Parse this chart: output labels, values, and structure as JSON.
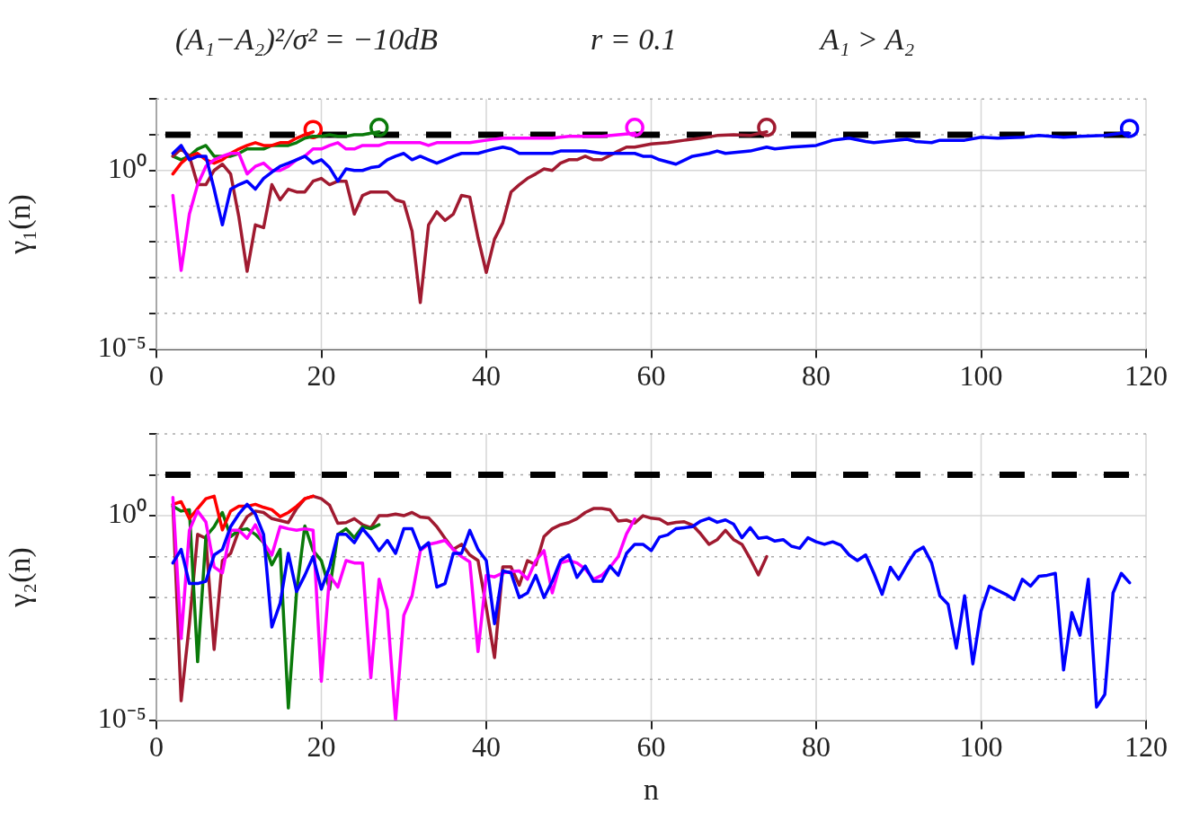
{
  "chart_data": [
    {
      "type": "line",
      "annotations": [
        "(A₁−A₂)²/σ² = −10dB",
        "r = 0.1",
        "A₁ > A₂"
      ],
      "ylabel": "γ₁(n)",
      "log": true,
      "grid": true,
      "xlim": [
        0,
        120
      ],
      "xticks": [
        0,
        20,
        40,
        60,
        80,
        100,
        120
      ],
      "ylim": [
        1e-05,
        100
      ],
      "yticks": [
        {
          "value": 1e-05,
          "label": "10⁻⁵"
        },
        {
          "value": 0.0001,
          "label": null
        },
        {
          "value": 0.001,
          "label": null
        },
        {
          "value": 0.01,
          "label": null
        },
        {
          "value": 0.1,
          "label": null
        },
        {
          "value": 1,
          "label": "10⁰"
        },
        {
          "value": 10,
          "label": null
        },
        {
          "value": 100,
          "label": null
        }
      ],
      "ref_lines": [
        {
          "axis": "y",
          "value": 10,
          "color": "#000000",
          "line_style": "dashed"
        }
      ],
      "series": [
        {
          "type": "line",
          "color": "#0000ff",
          "x": [
            2,
            3,
            4,
            5,
            6,
            7,
            8,
            9,
            10,
            11,
            12,
            13,
            14,
            15,
            16,
            17,
            18,
            19,
            20,
            21,
            22,
            23,
            24,
            25,
            26,
            27,
            28,
            29,
            30,
            31,
            32,
            33,
            34,
            35,
            36,
            37,
            38,
            39,
            40,
            41,
            42,
            43,
            44,
            45,
            46,
            47,
            48,
            49,
            50,
            52,
            54,
            56,
            58,
            59,
            60,
            61,
            63,
            65,
            67,
            68,
            69,
            72,
            74,
            75,
            77,
            80,
            82,
            84,
            86,
            87,
            91,
            92,
            94,
            95,
            98,
            100,
            102,
            105,
            107,
            110,
            112,
            115,
            117,
            118
          ],
          "values": [
            3,
            5,
            2,
            2.5,
            2.5,
            0.3,
            0.03,
            0.3,
            0.4,
            0.5,
            0.3,
            0.6,
            0.9,
            1.3,
            1.6,
            2,
            2.5,
            1.6,
            2,
            1.2,
            0.5,
            1.1,
            1,
            1,
            1.2,
            1.3,
            2,
            2.5,
            3,
            2,
            2.5,
            2,
            1.6,
            2,
            2.5,
            3,
            3,
            3,
            3.5,
            4,
            4.5,
            4,
            3,
            3,
            3,
            3,
            3,
            3.5,
            3.5,
            3.5,
            3,
            3,
            3,
            2.5,
            2.5,
            2,
            1.5,
            2.5,
            3,
            3.5,
            3,
            3.5,
            4.5,
            4,
            4.5,
            5,
            7,
            8,
            6.5,
            6,
            7.5,
            6.5,
            6,
            7,
            7,
            8.5,
            8,
            8.5,
            9.5,
            8.5,
            9,
            9.5,
            11,
            11
          ]
        },
        {
          "type": "line",
          "color": "#ff00ff",
          "x": [
            2,
            3,
            4,
            5,
            6,
            7,
            8,
            9,
            10,
            11,
            12,
            13,
            14,
            15,
            16,
            17,
            18,
            19,
            20,
            21,
            22,
            23,
            24,
            25,
            26,
            27,
            28,
            29,
            30,
            31,
            32,
            33,
            34,
            36,
            38,
            40,
            42,
            44,
            46,
            48,
            50,
            52,
            54,
            56,
            58
          ],
          "values": [
            0.2,
            0.0016,
            0.06,
            0.4,
            1.3,
            2,
            2.5,
            3,
            3,
            0.8,
            1.3,
            1.6,
            1,
            1,
            1.3,
            2,
            2.5,
            4,
            4,
            5,
            6,
            4,
            4,
            5,
            5,
            5,
            6,
            6,
            6,
            6,
            6,
            5,
            6,
            6,
            6,
            7,
            8,
            8,
            8,
            8,
            9,
            9,
            9,
            10,
            11
          ]
        },
        {
          "type": "line",
          "color": "#a01a30",
          "x": [
            2,
            3,
            4,
            5,
            6,
            7,
            8,
            9,
            10,
            11,
            12,
            13,
            14,
            15,
            16,
            17,
            18,
            19,
            20,
            21,
            22,
            23,
            24,
            25,
            26,
            27,
            28,
            29,
            30,
            31,
            32,
            33,
            34,
            35,
            36,
            37,
            38,
            39,
            40,
            41,
            42,
            43,
            44,
            45,
            46,
            47,
            48,
            49,
            50,
            51,
            52,
            53,
            54,
            56,
            57,
            58,
            60,
            62,
            64,
            66,
            68,
            70,
            72,
            74
          ],
          "values": [
            2.5,
            4,
            2.5,
            0.4,
            0.4,
            1,
            1.5,
            0.8,
            0.05,
            0.0015,
            0.03,
            0.025,
            0.4,
            0.15,
            0.3,
            0.25,
            0.25,
            0.5,
            0.6,
            0.4,
            0.5,
            0.5,
            0.06,
            0.2,
            0.25,
            0.25,
            0.25,
            0.15,
            0.13,
            0.02,
            0.0002,
            0.03,
            0.07,
            0.04,
            0.06,
            0.2,
            0.18,
            0.013,
            0.0014,
            0.012,
            0.034,
            0.25,
            0.4,
            0.6,
            0.8,
            1.1,
            1,
            1.6,
            2,
            2,
            2.5,
            2,
            2,
            3.5,
            4.5,
            4.5,
            5.5,
            6,
            7,
            8,
            9.5,
            10,
            9.5,
            12
          ]
        },
        {
          "type": "line",
          "color": "#ff0000",
          "x": [
            2,
            3,
            4,
            5,
            6,
            7,
            8,
            9,
            10,
            11,
            12,
            13,
            14,
            15,
            16,
            17,
            18,
            19
          ],
          "values": [
            0.8,
            1.6,
            2.5,
            3,
            2,
            1.6,
            2,
            3,
            4,
            5,
            6,
            5,
            5,
            6,
            6,
            8,
            10,
            12
          ]
        },
        {
          "type": "line",
          "color": "#0a7a0a",
          "x": [
            2,
            3,
            4,
            5,
            6,
            7,
            8,
            9,
            10,
            11,
            12,
            13,
            14,
            15,
            16,
            17,
            18,
            19,
            20,
            21,
            22,
            23,
            24,
            25,
            26,
            27
          ],
          "values": [
            2.5,
            2,
            2.5,
            4,
            5,
            2.5,
            2.5,
            2.5,
            3,
            4,
            4,
            4,
            5,
            5,
            5,
            6,
            8,
            9,
            9,
            10,
            9,
            9,
            10,
            10,
            11,
            12
          ]
        },
        {
          "type": "scatter",
          "marker": "circle",
          "color": "#ff0000",
          "x": [
            19
          ],
          "values": [
            14
          ]
        },
        {
          "type": "scatter",
          "marker": "circle",
          "color": "#0a7a0a",
          "x": [
            27
          ],
          "values": [
            16
          ]
        },
        {
          "type": "scatter",
          "marker": "circle",
          "color": "#ff00ff",
          "x": [
            58
          ],
          "values": [
            16
          ]
        },
        {
          "type": "scatter",
          "marker": "circle",
          "color": "#a01a30",
          "x": [
            74
          ],
          "values": [
            16
          ]
        },
        {
          "type": "scatter",
          "marker": "circle",
          "color": "#0000ff",
          "x": [
            118
          ],
          "values": [
            15
          ]
        }
      ]
    },
    {
      "type": "line",
      "xlabel": "n",
      "ylabel": "γ₂(n)",
      "log": true,
      "grid": true,
      "xlim": [
        0,
        120
      ],
      "xticks": [
        0,
        20,
        40,
        60,
        80,
        100,
        120
      ],
      "ylim": [
        1e-05,
        100
      ],
      "yticks": [
        {
          "value": 1e-05,
          "label": "10⁻⁵"
        },
        {
          "value": 0.0001,
          "label": null
        },
        {
          "value": 0.001,
          "label": null
        },
        {
          "value": 0.01,
          "label": null
        },
        {
          "value": 0.1,
          "label": null
        },
        {
          "value": 1,
          "label": "10⁰"
        },
        {
          "value": 10,
          "label": null
        },
        {
          "value": 100,
          "label": null
        }
      ],
      "ref_lines": [
        {
          "axis": "y",
          "value": 10,
          "color": "#000000",
          "line_style": "dashed"
        }
      ],
      "series": [
        {
          "type": "line",
          "color": "#0000ff",
          "x": [
            2,
            3,
            4,
            5,
            6,
            7,
            8,
            9,
            10,
            11,
            12,
            13,
            14,
            15,
            16,
            17,
            18,
            19,
            20,
            21,
            22,
            23,
            24,
            25,
            26,
            27,
            28,
            29,
            30,
            31,
            32,
            33,
            34,
            35,
            36,
            37,
            38,
            39,
            40,
            41,
            42,
            43,
            44,
            45,
            46,
            47,
            48,
            49,
            50,
            51,
            52,
            53,
            54,
            55,
            56,
            57,
            58,
            59,
            60,
            61,
            62,
            63,
            64,
            65,
            66,
            67,
            68,
            69,
            70,
            71,
            72,
            73,
            74,
            75,
            76,
            77,
            78,
            79,
            80,
            81,
            82,
            83,
            84,
            85,
            86,
            87,
            88,
            89,
            90,
            91,
            92,
            93,
            94,
            95,
            96,
            97,
            98,
            99,
            100,
            101,
            102,
            103,
            104,
            105,
            106,
            107,
            108,
            109,
            110,
            111,
            112,
            113,
            114,
            115,
            116,
            117,
            118
          ],
          "values": [
            0.07,
            0.15,
            0.022,
            0.022,
            0.025,
            0.11,
            0.15,
            0.54,
            1.1,
            1.9,
            1.1,
            0.35,
            0.0019,
            0.0072,
            0.12,
            0.014,
            0.035,
            0.1,
            0.016,
            0.056,
            0.35,
            0.35,
            0.22,
            0.48,
            0.28,
            0.14,
            0.25,
            0.12,
            0.48,
            0.48,
            0.15,
            0.22,
            0.018,
            0.022,
            0.12,
            0.12,
            0.44,
            0.15,
            0.08,
            0.0023,
            0.045,
            0.04,
            0.01,
            0.013,
            0.035,
            0.01,
            0.025,
            0.08,
            0.11,
            0.031,
            0.059,
            0.025,
            0.025,
            0.059,
            0.035,
            0.12,
            0.2,
            0.2,
            0.14,
            0.3,
            0.34,
            0.48,
            0.51,
            0.54,
            0.74,
            0.87,
            0.69,
            0.79,
            0.62,
            0.29,
            0.51,
            0.28,
            0.3,
            0.24,
            0.26,
            0.18,
            0.16,
            0.29,
            0.23,
            0.2,
            0.23,
            0.19,
            0.11,
            0.08,
            0.11,
            0.039,
            0.012,
            0.055,
            0.028,
            0.063,
            0.13,
            0.17,
            0.07,
            0.011,
            0.0068,
            0.00058,
            0.011,
            0.00024,
            0.0047,
            0.019,
            0.015,
            0.012,
            0.0089,
            0.028,
            0.019,
            0.033,
            0.035,
            0.039,
            0.00017,
            0.0043,
            0.0012,
            0.028,
            2.1e-05,
            4.3e-05,
            0.013,
            0.039,
            0.023
          ]
        },
        {
          "type": "line",
          "color": "#ff00ff",
          "x": [
            2,
            3,
            4,
            5,
            6,
            7,
            8,
            9,
            10,
            11,
            12,
            13,
            14,
            15,
            16,
            17,
            18,
            19,
            20,
            21,
            22,
            23,
            24,
            25,
            26,
            27,
            28,
            29,
            30,
            31,
            32,
            33,
            34,
            35,
            36,
            37,
            38,
            39,
            40,
            41,
            42,
            43,
            44,
            45,
            46,
            47,
            48,
            49,
            50,
            51,
            52,
            53,
            54,
            55,
            56,
            57,
            58
          ],
          "values": [
            2.8,
            0.001,
            0.44,
            1.3,
            0.7,
            0.056,
            0.04,
            0.44,
            0.44,
            0.28,
            0.6,
            0.22,
            0.11,
            0.54,
            0.48,
            0.44,
            0.48,
            0.44,
            9e-05,
            0.035,
            0.018,
            0.08,
            0.07,
            0.07,
            0.00011,
            0.028,
            0.005,
            1e-05,
            0.0037,
            0.011,
            0.14,
            0.2,
            0.22,
            0.25,
            0.15,
            0.1,
            0.074,
            0.00048,
            0.035,
            0.032,
            0.04,
            0.043,
            0.045,
            0.028,
            0.08,
            0.14,
            0.013,
            0.07,
            0.08,
            0.07,
            0.05,
            0.028,
            0.035,
            0.055,
            0.1,
            0.36,
            0.83
          ]
        },
        {
          "type": "line",
          "color": "#ff0000",
          "x": [
            2,
            3,
            4,
            5,
            6,
            7,
            8,
            9,
            10,
            11,
            12,
            13,
            14,
            15,
            16,
            17,
            18,
            19
          ],
          "values": [
            1.9,
            2.2,
            0.85,
            1.5,
            2.6,
            3,
            0.45,
            1.3,
            1.7,
            1.7,
            1.9,
            1.6,
            1.4,
            0.95,
            1.2,
            1.7,
            2.6,
            3
          ]
        },
        {
          "type": "line",
          "color": "#0a7a0a",
          "x": [
            2,
            3,
            4,
            5,
            6,
            7,
            8,
            9,
            10,
            11,
            12,
            13,
            14,
            15,
            16,
            17,
            18,
            19,
            20,
            21,
            22,
            23,
            24,
            25,
            26,
            27
          ],
          "values": [
            1.7,
            1.3,
            1.4,
            0.00027,
            0.31,
            0.54,
            1.2,
            0.31,
            0.44,
            0.48,
            0.35,
            0.22,
            0.063,
            0.15,
            2e-05,
            0.014,
            0.56,
            0.14,
            0.08,
            0.016,
            0.35,
            0.48,
            0.29,
            0.54,
            0.48,
            0.6
          ]
        },
        {
          "type": "line",
          "color": "#a01a30",
          "x": [
            2,
            3,
            4,
            5,
            6,
            7,
            8,
            9,
            10,
            11,
            12,
            13,
            14,
            15,
            16,
            17,
            18,
            19,
            20,
            21,
            22,
            23,
            24,
            25,
            26,
            27,
            28,
            29,
            30,
            31,
            32,
            33,
            34,
            35,
            36,
            37,
            38,
            39,
            40,
            41,
            42,
            43,
            44,
            45,
            46,
            47,
            48,
            49,
            50,
            51,
            52,
            53,
            54,
            55,
            56,
            57,
            58,
            59,
            60,
            61,
            62,
            63,
            64,
            65,
            66,
            67,
            68,
            69,
            70,
            71,
            72,
            73,
            74
          ],
          "values": [
            1.9,
            3e-05,
            0.0023,
            0.35,
            0.28,
            0.00054,
            0.08,
            0.12,
            0.44,
            0.95,
            1.3,
            1.2,
            0.85,
            0.76,
            0.68,
            1.5,
            2.6,
            3,
            2.6,
            1.8,
            0.65,
            0.68,
            0.85,
            0.6,
            0.51,
            1,
            1,
            1.1,
            1,
            1.2,
            0.93,
            0.89,
            0.54,
            0.28,
            0.15,
            0.2,
            0.11,
            0.08,
            0.0058,
            0.00034,
            0.056,
            0.056,
            0.02,
            0.08,
            0.063,
            0.31,
            0.48,
            0.6,
            0.68,
            0.85,
            1.2,
            1.5,
            1.5,
            1.4,
            0.74,
            0.78,
            0.66,
            1,
            0.87,
            0.83,
            0.63,
            0.69,
            0.71,
            0.59,
            0.36,
            0.2,
            0.26,
            0.44,
            0.26,
            0.2,
            0.089,
            0.036,
            0.1
          ]
        }
      ]
    }
  ]
}
